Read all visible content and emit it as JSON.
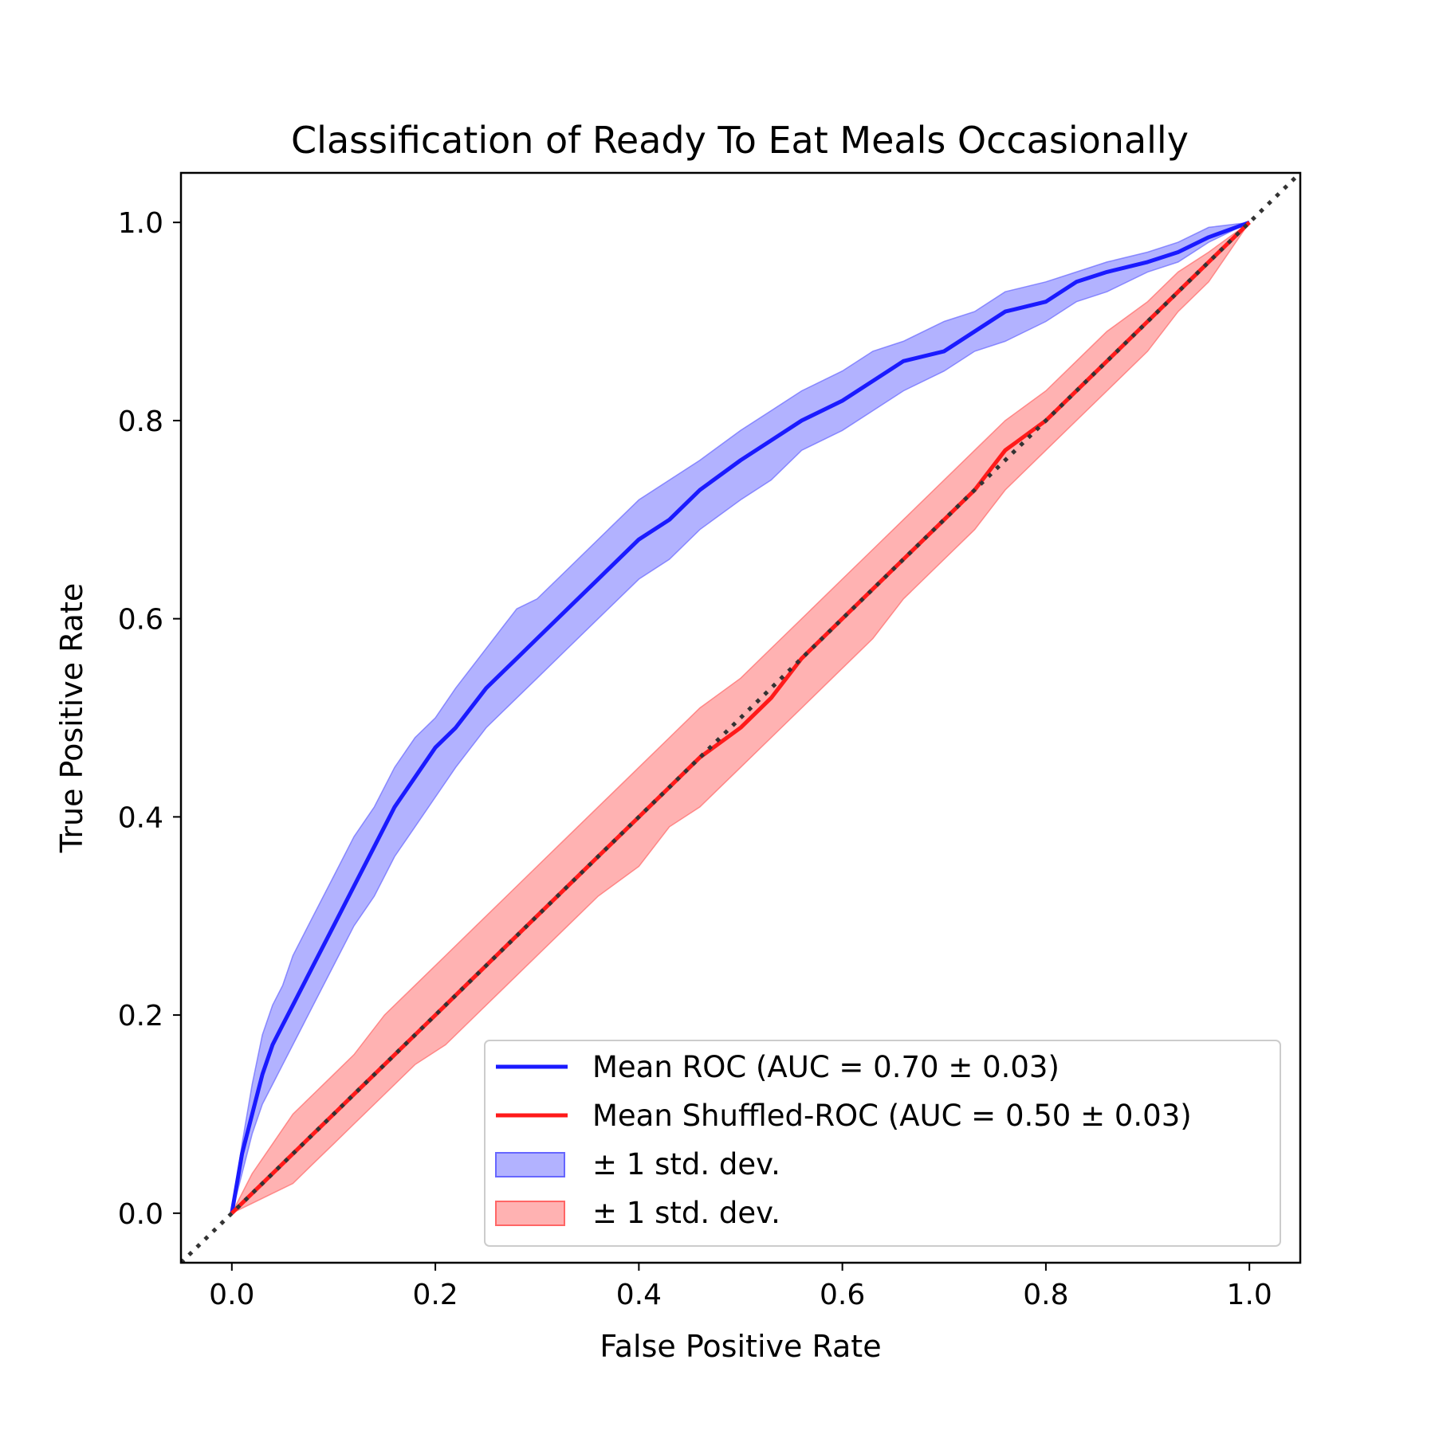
{
  "chart_data": {
    "type": "line",
    "title": "Classification of Ready To Eat Meals Occasionally",
    "xlabel": "False Positive Rate",
    "ylabel": "True Positive Rate",
    "xlim": [
      -0.05,
      1.05
    ],
    "ylim": [
      -0.05,
      1.05
    ],
    "xticks": [
      "0.0",
      "0.2",
      "0.4",
      "0.6",
      "0.8",
      "1.0"
    ],
    "yticks": [
      "0.0",
      "0.2",
      "0.4",
      "0.6",
      "0.8",
      "1.0"
    ],
    "grid": false,
    "legend_position": "lower right",
    "chance_line": {
      "x": [
        -0.05,
        1.05
      ],
      "y": [
        -0.05,
        1.05
      ],
      "color": "#333333",
      "style": "dotted"
    },
    "series": [
      {
        "name": "Mean ROC (AUC = 0.70 ± 0.03)",
        "color": "#1a1aff",
        "band_color": "#6666ff",
        "x": [
          0,
          0.01,
          0.02,
          0.03,
          0.04,
          0.05,
          0.06,
          0.08,
          0.1,
          0.12,
          0.14,
          0.16,
          0.18,
          0.2,
          0.22,
          0.25,
          0.28,
          0.3,
          0.33,
          0.36,
          0.4,
          0.43,
          0.46,
          0.5,
          0.53,
          0.56,
          0.6,
          0.63,
          0.66,
          0.7,
          0.73,
          0.76,
          0.8,
          0.83,
          0.86,
          0.9,
          0.93,
          0.96,
          1.0
        ],
        "y": [
          0,
          0.06,
          0.1,
          0.14,
          0.17,
          0.19,
          0.21,
          0.25,
          0.29,
          0.33,
          0.37,
          0.41,
          0.44,
          0.47,
          0.49,
          0.53,
          0.56,
          0.58,
          0.61,
          0.64,
          0.68,
          0.7,
          0.73,
          0.76,
          0.78,
          0.8,
          0.82,
          0.84,
          0.86,
          0.87,
          0.89,
          0.91,
          0.92,
          0.94,
          0.95,
          0.96,
          0.97,
          0.985,
          1.0
        ],
        "upper": [
          0,
          0.07,
          0.13,
          0.18,
          0.21,
          0.23,
          0.26,
          0.3,
          0.34,
          0.38,
          0.41,
          0.45,
          0.48,
          0.5,
          0.53,
          0.57,
          0.61,
          0.62,
          0.65,
          0.68,
          0.72,
          0.74,
          0.76,
          0.79,
          0.81,
          0.83,
          0.85,
          0.87,
          0.88,
          0.9,
          0.91,
          0.93,
          0.94,
          0.95,
          0.96,
          0.97,
          0.98,
          0.995,
          1.0
        ],
        "lower": [
          0,
          0.04,
          0.08,
          0.11,
          0.13,
          0.15,
          0.17,
          0.21,
          0.25,
          0.29,
          0.32,
          0.36,
          0.39,
          0.42,
          0.45,
          0.49,
          0.52,
          0.54,
          0.57,
          0.6,
          0.64,
          0.66,
          0.69,
          0.72,
          0.74,
          0.77,
          0.79,
          0.81,
          0.83,
          0.85,
          0.87,
          0.88,
          0.9,
          0.92,
          0.93,
          0.95,
          0.96,
          0.98,
          1.0
        ]
      },
      {
        "name": "Mean Shuffled-ROC (AUC = 0.50 ± 0.03)",
        "color": "#ff1a1a",
        "band_color": "#ff6666",
        "x": [
          0,
          0.02,
          0.04,
          0.06,
          0.08,
          0.1,
          0.12,
          0.15,
          0.18,
          0.21,
          0.24,
          0.27,
          0.3,
          0.33,
          0.36,
          0.4,
          0.43,
          0.46,
          0.5,
          0.53,
          0.56,
          0.6,
          0.63,
          0.66,
          0.7,
          0.73,
          0.76,
          0.8,
          0.83,
          0.86,
          0.9,
          0.93,
          0.96,
          1.0
        ],
        "y": [
          0,
          0.02,
          0.04,
          0.06,
          0.08,
          0.1,
          0.12,
          0.15,
          0.18,
          0.21,
          0.24,
          0.27,
          0.3,
          0.33,
          0.36,
          0.4,
          0.43,
          0.46,
          0.49,
          0.52,
          0.56,
          0.6,
          0.63,
          0.66,
          0.7,
          0.73,
          0.77,
          0.8,
          0.83,
          0.86,
          0.9,
          0.93,
          0.96,
          1.0
        ],
        "upper": [
          0,
          0.04,
          0.07,
          0.1,
          0.12,
          0.14,
          0.16,
          0.2,
          0.23,
          0.26,
          0.29,
          0.32,
          0.35,
          0.38,
          0.41,
          0.45,
          0.48,
          0.51,
          0.54,
          0.57,
          0.6,
          0.64,
          0.67,
          0.7,
          0.74,
          0.77,
          0.8,
          0.83,
          0.86,
          0.89,
          0.92,
          0.95,
          0.97,
          1.0
        ],
        "lower": [
          0,
          0.01,
          0.02,
          0.03,
          0.05,
          0.07,
          0.09,
          0.12,
          0.15,
          0.17,
          0.2,
          0.23,
          0.26,
          0.29,
          0.32,
          0.35,
          0.39,
          0.41,
          0.45,
          0.48,
          0.51,
          0.55,
          0.58,
          0.62,
          0.66,
          0.69,
          0.73,
          0.77,
          0.8,
          0.83,
          0.87,
          0.91,
          0.94,
          1.0
        ]
      }
    ],
    "bands": [
      {
        "name": "± 1 std. dev.",
        "color": "#6666ff"
      },
      {
        "name": "± 1 std. dev.",
        "color": "#ff6666"
      }
    ]
  }
}
